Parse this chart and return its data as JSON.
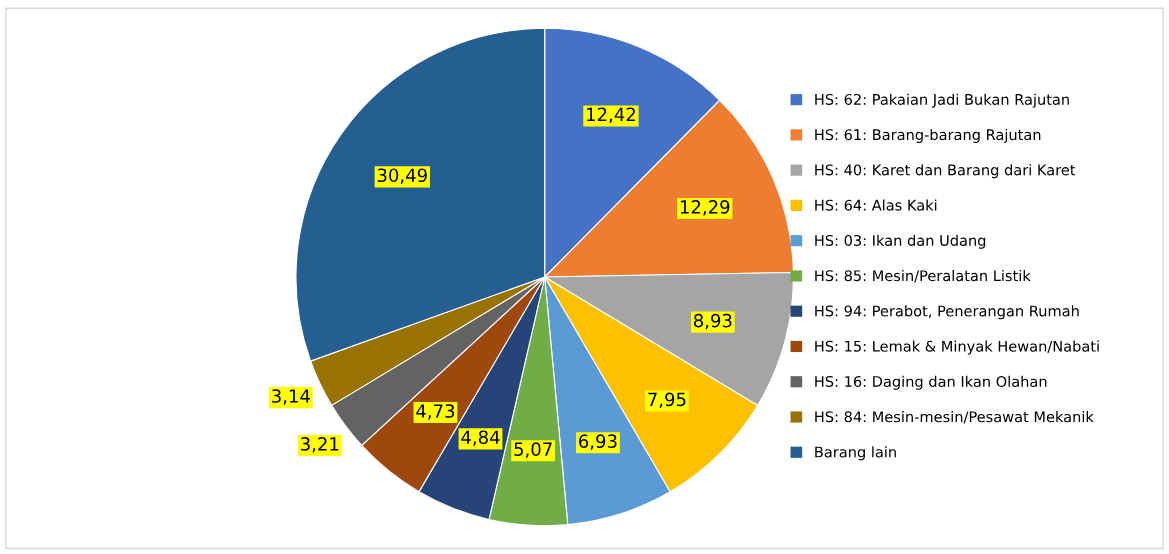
{
  "chart_data": {
    "type": "pie",
    "categories": [
      "HS: 62: Pakaian Jadi Bukan Rajutan",
      "HS: 61: Barang-barang Rajutan",
      "HS: 40: Karet dan Barang dari Karet",
      "HS: 64: Alas Kaki",
      "HS: 03: Ikan dan Udang",
      "HS: 85: Mesin/Peralatan Listik",
      "HS: 94: Perabot, Penerangan Rumah",
      "HS: 15: Lemak & Minyak Hewan/Nabati",
      "HS: 16: Daging dan Ikan Olahan",
      "HS: 84: Mesin-mesin/Pesawat Mekanik",
      "Barang lain"
    ],
    "values": [
      12.42,
      12.29,
      8.93,
      7.95,
      6.93,
      5.07,
      4.84,
      4.73,
      3.21,
      3.14,
      30.49
    ],
    "value_labels": [
      "12,42",
      "12,29",
      "8,93",
      "7,95",
      "6,93",
      "5,07",
      "4,84",
      "4,73",
      "3,21",
      "3,14",
      "30,49"
    ],
    "colors": [
      "#4472c4",
      "#ed7d31",
      "#a5a5a5",
      "#ffc000",
      "#5b9bd5",
      "#70ad47",
      "#264478",
      "#9e480e",
      "#636363",
      "#997300",
      "#255e91"
    ],
    "legend": "right"
  }
}
